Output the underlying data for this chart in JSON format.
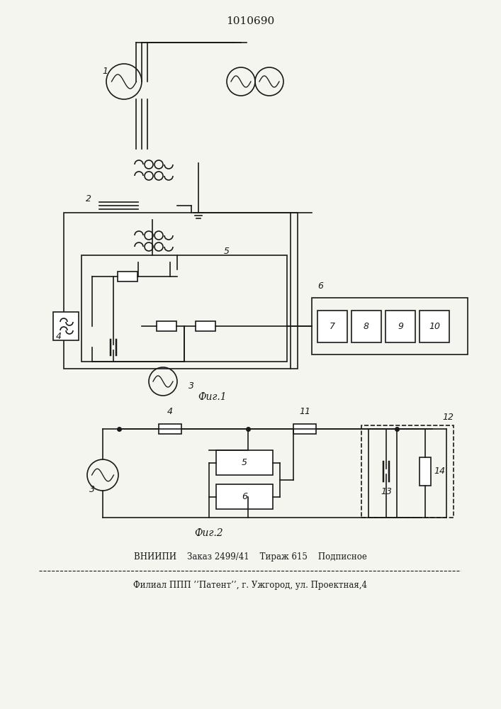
{
  "title": "1010690",
  "title_fontsize": 11,
  "fig_width": 7.07,
  "fig_height": 10.0,
  "bg_color": "#f5f5f0",
  "line_color": "#1a1a1a",
  "fig1_label": "Фиг.1",
  "fig2_label": "Фиг.2",
  "footer_line1": "ВНИИПИ    Заказ 2499/41    Тираж 615    Подписное",
  "footer_line2": "Филиал ППП ’’Патент’’, г. Ужгород, ул. Проектная,4"
}
